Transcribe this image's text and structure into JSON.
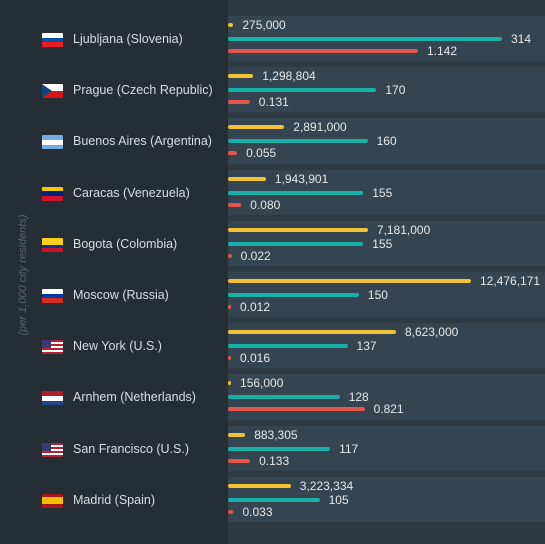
{
  "chart_data": {
    "type": "bar",
    "orientation": "horizontal",
    "ylabel": "(per 1,000 city residents)",
    "categories": [
      "Ljubljana (Slovenia)",
      "Prague (Czech Republic)",
      "Buenos Aires (Argentina)",
      "Caracas (Venezuela)",
      "Bogota (Colombia)",
      "Moscow (Russia)",
      "New York (U.S.)",
      "Arnhem (Netherlands)",
      "San Francisco (U.S.)",
      "Madrid (Spain)"
    ],
    "series": [
      {
        "color": "#f1c232",
        "values": [
          275000,
          1298804,
          2891000,
          1943901,
          7181000,
          12476171,
          8623000,
          156000,
          883305,
          3223334
        ],
        "labels": [
          "275,000",
          "1,298,804",
          "2,891,000",
          "1,943,901",
          "7,181,000",
          "12,476,171",
          "8,623,000",
          "156,000",
          "883,305",
          "3,223,334"
        ]
      },
      {
        "color": "#16b1a6",
        "values": [
          314,
          170,
          160,
          155,
          155,
          150,
          137,
          128,
          117,
          105
        ],
        "labels": [
          "314",
          "170",
          "160",
          "155",
          "155",
          "150",
          "137",
          "128",
          "117",
          "105"
        ]
      },
      {
        "color": "#e1574b",
        "values": [
          1.142,
          0.131,
          0.055,
          0.08,
          0.022,
          0.012,
          0.016,
          0.821,
          0.133,
          0.033
        ],
        "labels": [
          "1.142",
          "0.131",
          "0.055",
          "0.080",
          "0.022",
          "0.012",
          "0.016",
          "0.821",
          "0.133",
          "0.033"
        ]
      }
    ],
    "grid": false,
    "legend": "none"
  },
  "flags": [
    {
      "icon": "flag-slovenia-icon",
      "stripes": [
        "#ffffff",
        "#0b4ea2",
        "#ed1c24"
      ]
    },
    {
      "icon": "flag-czech-icon",
      "stripes": [
        "#ffffff",
        "#d7141a"
      ],
      "triangle": "#11457e"
    },
    {
      "icon": "flag-argentina-icon",
      "stripes": [
        "#74acdf",
        "#ffffff",
        "#74acdf"
      ]
    },
    {
      "icon": "flag-venezuela-icon",
      "stripes": [
        "#f7c600",
        "#00247d",
        "#cf142b"
      ]
    },
    {
      "icon": "flag-colombia-icon",
      "stripes": [
        "#fcd116",
        "#fcd116",
        "#003893",
        "#ce1126"
      ]
    },
    {
      "icon": "flag-russia-icon",
      "stripes": [
        "#ffffff",
        "#0039a6",
        "#d52b1e"
      ]
    },
    {
      "icon": "flag-usa-icon",
      "stripes": [
        "#b22234",
        "#ffffff",
        "#b22234",
        "#ffffff",
        "#b22234",
        "#ffffff",
        "#b22234"
      ],
      "canton": "#3c3b6e"
    },
    {
      "icon": "flag-netherlands-icon",
      "stripes": [
        "#ae1c28",
        "#ffffff",
        "#21468b"
      ]
    },
    {
      "icon": "flag-usa-icon",
      "stripes": [
        "#b22234",
        "#ffffff",
        "#b22234",
        "#ffffff",
        "#b22234",
        "#ffffff",
        "#b22234"
      ],
      "canton": "#3c3b6e"
    },
    {
      "icon": "flag-spain-icon",
      "stripes": [
        "#aa151b",
        "#f1bf00",
        "#f1bf00",
        "#aa151b"
      ]
    }
  ]
}
